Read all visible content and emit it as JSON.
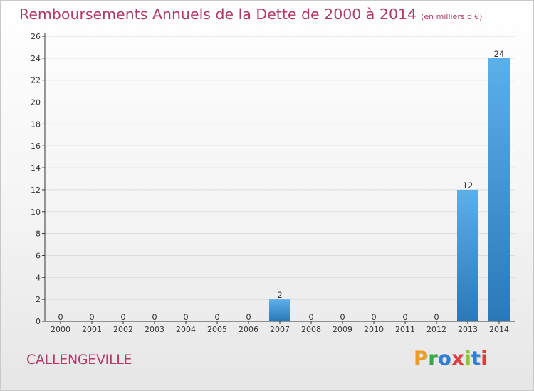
{
  "header": {
    "title": "Remboursements Annuels de la Dette de 2000 à 2014",
    "unit": "(en milliers d'€)"
  },
  "footer": {
    "commune": "CALLENGEVILLE",
    "brand": "Proxiti",
    "brand_colors": [
      "#f29a1c",
      "#3aa845",
      "#2b7fd6",
      "#e23b3b",
      "#8cc63f",
      "#2b7fd6",
      "#e23b3b"
    ]
  },
  "colors": {
    "bar_top": "#5cb0ea",
    "bar_bottom": "#2a78b8",
    "axis": "#333333",
    "grid": "#dcdcdc",
    "accent": "#b03a6a"
  },
  "chart_data": {
    "type": "bar",
    "title": "Remboursements Annuels de la Dette de 2000 à 2014",
    "subtitle": "(en milliers d'€)",
    "categories": [
      "2000",
      "2001",
      "2002",
      "2003",
      "2004",
      "2005",
      "2006",
      "2007",
      "2008",
      "2009",
      "2010",
      "2011",
      "2012",
      "2013",
      "2014"
    ],
    "values": [
      0,
      0,
      0,
      0,
      0,
      0,
      0,
      2,
      0,
      0,
      0,
      0,
      0,
      12,
      24
    ],
    "xlabel": "",
    "ylabel": "",
    "ylim": [
      0,
      26
    ],
    "yticks": [
      0,
      2,
      4,
      6,
      8,
      10,
      12,
      14,
      16,
      18,
      20,
      22,
      24,
      26
    ],
    "grid": true,
    "data_labels": true
  }
}
